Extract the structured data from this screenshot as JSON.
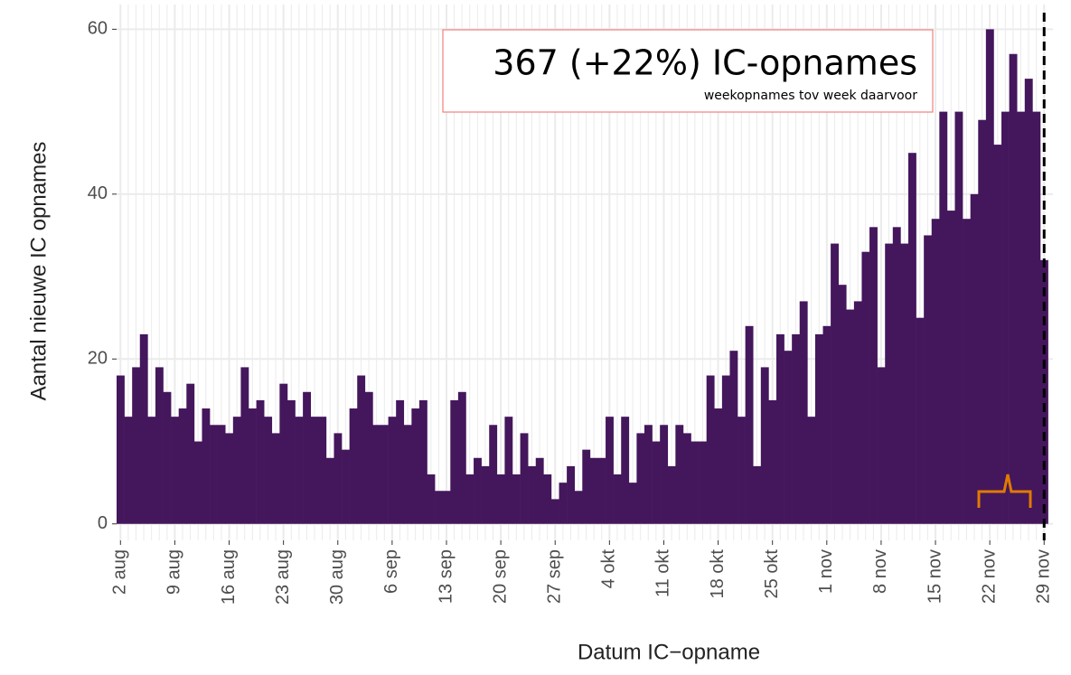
{
  "chart_data": {
    "type": "bar",
    "annotation": {
      "title": "367 (+22%) IC-opnames",
      "subtitle": "weekopnames tov week daarvoor"
    },
    "x_label": "Datum IC−opname",
    "y_label": "Aantal nieuwe IC opnames",
    "color": "#44165c",
    "grid": true,
    "ylim": [
      -2,
      63
    ],
    "yticks": [
      0,
      20,
      40,
      60
    ],
    "categories": [
      "2 aug",
      null,
      null,
      null,
      null,
      null,
      null,
      "9 aug",
      null,
      null,
      null,
      null,
      null,
      null,
      "16 aug",
      null,
      null,
      null,
      null,
      null,
      null,
      "23 aug",
      null,
      null,
      null,
      null,
      null,
      null,
      "30 aug",
      null,
      null,
      null,
      null,
      null,
      null,
      "6 sep",
      null,
      null,
      null,
      null,
      null,
      null,
      "13 sep",
      null,
      null,
      null,
      null,
      null,
      null,
      "20 sep",
      null,
      null,
      null,
      null,
      null,
      null,
      "27 sep",
      null,
      null,
      null,
      null,
      null,
      null,
      "4 okt",
      null,
      null,
      null,
      null,
      null,
      null,
      "11 okt",
      null,
      null,
      null,
      null,
      null,
      null,
      "18 okt",
      null,
      null,
      null,
      null,
      null,
      null,
      "25 okt",
      null,
      null,
      null,
      null,
      null,
      null,
      "1 nov",
      null,
      null,
      null,
      null,
      null,
      null,
      "8 nov",
      null,
      null,
      null,
      null,
      null,
      null,
      "15 nov",
      null,
      null,
      null,
      null,
      null,
      null,
      "22 nov",
      null,
      null,
      null,
      null,
      null,
      null,
      "29 nov"
    ],
    "values": [
      18,
      13,
      19,
      23,
      13,
      19,
      16,
      13,
      14,
      17,
      10,
      14,
      12,
      12,
      11,
      13,
      19,
      14,
      15,
      13,
      11,
      17,
      15,
      13,
      16,
      13,
      13,
      8,
      11,
      9,
      14,
      18,
      16,
      12,
      12,
      13,
      15,
      12,
      14,
      15,
      6,
      4,
      4,
      15,
      16,
      6,
      8,
      7,
      12,
      6,
      13,
      6,
      11,
      7,
      8,
      6,
      3,
      5,
      7,
      4,
      9,
      8,
      8,
      13,
      6,
      13,
      5,
      11,
      12,
      10,
      12,
      7,
      12,
      11,
      10,
      10,
      18,
      14,
      18,
      21,
      13,
      24,
      7,
      19,
      15,
      23,
      21,
      23,
      27,
      13,
      23,
      24,
      34,
      29,
      26,
      27,
      33,
      36,
      19,
      34,
      36,
      34,
      45,
      25,
      35,
      37,
      50,
      38,
      50,
      37,
      40,
      49,
      60,
      46,
      50,
      57,
      50,
      54,
      50,
      32
    ]
  }
}
